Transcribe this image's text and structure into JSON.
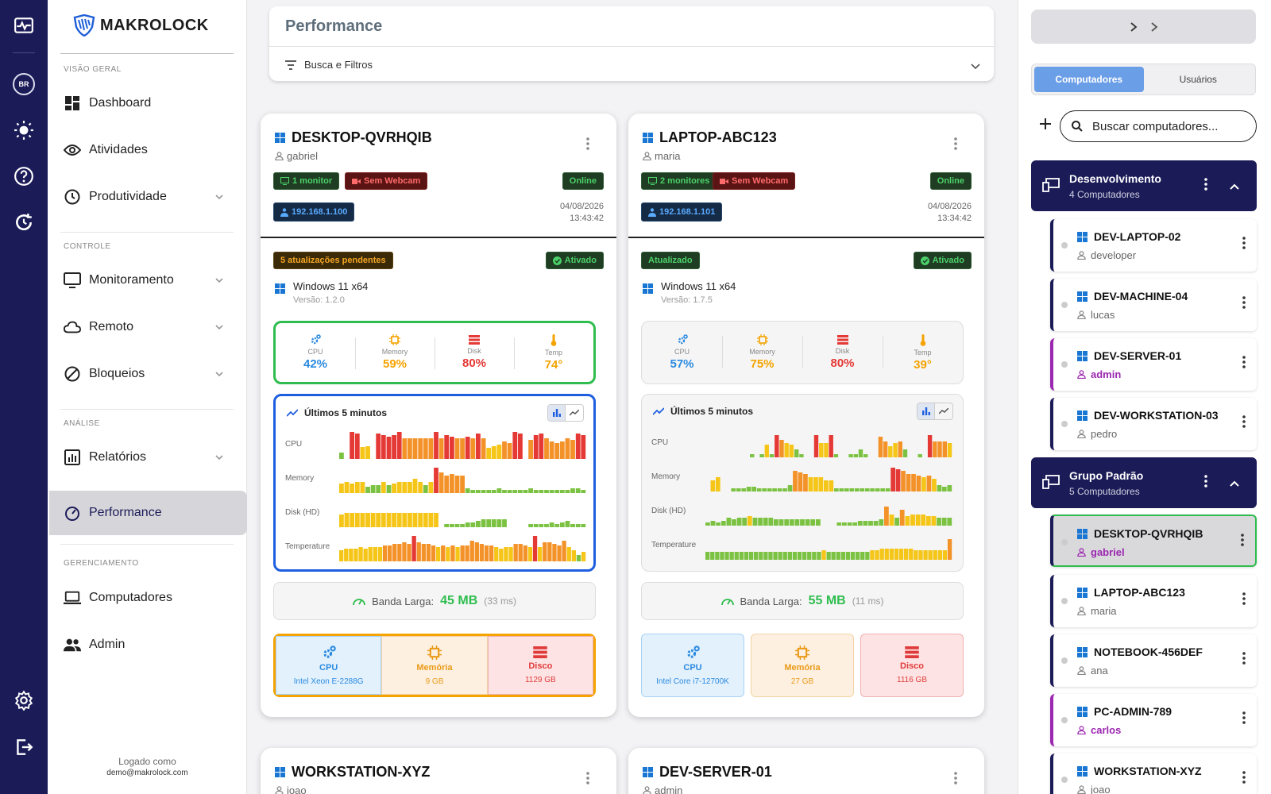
{
  "brand": {
    "name": "MAKROLOCK"
  },
  "rail": {
    "language": "BR"
  },
  "sidebar": {
    "sections": {
      "overview": "VISÃO GERAL",
      "control": "CONTROLE",
      "analysis": "ANÁLISE",
      "management": "GERENCIAMENTO"
    },
    "items": {
      "dashboard": "Dashboard",
      "atividades": "Atividades",
      "produtividade": "Produtividade",
      "monitoramento": "Monitoramento",
      "remoto": "Remoto",
      "bloqueios": "Bloqueios",
      "relatorios": "Relatórios",
      "performance": "Performance",
      "computadores": "Computadores",
      "admin": "Admin"
    },
    "logged_label": "Logado como",
    "logged_email": "demo@makrolock.com"
  },
  "header": {
    "title": "Performance",
    "filters_label": "Busca e Filtros"
  },
  "labels": {
    "cpu": "CPU",
    "memory": "Memory",
    "disk": "Disk",
    "temp": "Temp",
    "history_title": "Últimos 5 minutos",
    "row_cpu": "CPU",
    "row_memory": "Memory",
    "row_disk": "Disk (HD)",
    "row_temp": "Temperature",
    "bandwidth": "Banda Larga:",
    "hw_cpu": "CPU",
    "hw_memory": "Memória",
    "hw_disk": "Disco",
    "activated": "Ativado",
    "online": "Online"
  },
  "cards": [
    {
      "name": "DESKTOP-QVRHQIB",
      "user": "gabriel",
      "monitors": "1 monitor",
      "webcam": "Sem Webcam",
      "ip": "192.168.1.100",
      "date": "04/08/2026",
      "time": "13:43:42",
      "updates": "5 atualizações pendentes",
      "os": "Windows 11 x64",
      "version": "Versão: 1.2.0",
      "cpu": "42%",
      "memory": "59%",
      "disk": "80%",
      "temp": "74°",
      "bandwidth": "45 MB",
      "latency": "(33 ms)",
      "cpu_model": "Intel Xeon E-2288G",
      "mem_size": "9 GB",
      "disk_size": "1129 GB"
    },
    {
      "name": "LAPTOP-ABC123",
      "user": "maria",
      "monitors": "2 monitores",
      "webcam": "Sem Webcam",
      "ip": "192.168.1.101",
      "date": "04/08/2026",
      "time": "13:34:42",
      "updates": "Atualizado",
      "os": "Windows 11 x64",
      "version": "Versão: 1.7.5",
      "cpu": "57%",
      "memory": "75%",
      "disk": "80%",
      "temp": "39°",
      "bandwidth": "55 MB",
      "latency": "(11 ms)",
      "cpu_model": "Intel Core i7-12700K",
      "mem_size": "27 GB",
      "disk_size": "1116 GB"
    },
    {
      "name": "WORKSTATION-XYZ",
      "user": "joao"
    },
    {
      "name": "DEV-SERVER-01",
      "user": "admin"
    }
  ],
  "right": {
    "tabs": {
      "computers": "Computadores",
      "users": "Usuários"
    },
    "search_placeholder": "Buscar computadores...",
    "groups": [
      {
        "name": "Desenvolvimento",
        "count": "4 Computadores"
      },
      {
        "name": "Grupo Padrão",
        "count": "5 Computadores"
      }
    ],
    "computers": [
      {
        "name": "DEV-LAPTOP-02",
        "user": "developer"
      },
      {
        "name": "DEV-MACHINE-04",
        "user": "lucas"
      },
      {
        "name": "DEV-SERVER-01",
        "user": "admin"
      },
      {
        "name": "DEV-WORKSTATION-03",
        "user": "pedro"
      },
      {
        "name": "DESKTOP-QVRHQIB",
        "user": "gabriel"
      },
      {
        "name": "LAPTOP-ABC123",
        "user": "maria"
      },
      {
        "name": "NOTEBOOK-456DEF",
        "user": "ana"
      },
      {
        "name": "PC-ADMIN-789",
        "user": "carlos"
      },
      {
        "name": "WORKSTATION-XYZ",
        "user": "joao"
      }
    ]
  },
  "colors": {
    "rail": "#1b1b58",
    "accent": "#2ebd4e",
    "low": "#7cc242",
    "mid": "#f5c518",
    "high": "#f4922a",
    "crit": "#e53935"
  },
  "history": [
    {
      "cpu": [
        8,
        0,
        34,
        32,
        15,
        16,
        0,
        32,
        30,
        28,
        30,
        34,
        26,
        26,
        26,
        26,
        26,
        26,
        34,
        26,
        30,
        28,
        26,
        26,
        28,
        26,
        32,
        26,
        14,
        16,
        18,
        22,
        20,
        34,
        32,
        0,
        24,
        30,
        32,
        26,
        22,
        20,
        22,
        26,
        24,
        32,
        30
      ],
      "memory": [
        12,
        14,
        12,
        14,
        14,
        8,
        10,
        10,
        14,
        10,
        12,
        14,
        14,
        14,
        18,
        14,
        10,
        14,
        32,
        26,
        22,
        24,
        22,
        22,
        6,
        4,
        4,
        4,
        4,
        4,
        6,
        4,
        4,
        4,
        4,
        4,
        6,
        4,
        4,
        4,
        4,
        4,
        4,
        4,
        6,
        6,
        4
      ],
      "disk": [
        16,
        18,
        18,
        18,
        18,
        18,
        18,
        18,
        18,
        18,
        18,
        18,
        18,
        18,
        18,
        18,
        18,
        18,
        18,
        0,
        4,
        4,
        4,
        4,
        6,
        6,
        8,
        10,
        10,
        10,
        10,
        10,
        0,
        0,
        0,
        0,
        4,
        4,
        4,
        4,
        6,
        4,
        6,
        8,
        4,
        4,
        4
      ],
      "temp": [
        14,
        16,
        16,
        16,
        18,
        16,
        18,
        18,
        18,
        20,
        20,
        22,
        22,
        24,
        22,
        32,
        24,
        22,
        22,
        20,
        18,
        20,
        18,
        20,
        18,
        20,
        20,
        26,
        24,
        22,
        20,
        20,
        18,
        16,
        18,
        18,
        22,
        22,
        20,
        18,
        32,
        18,
        24,
        24,
        22,
        20,
        26,
        18,
        14,
        8,
        12
      ]
    },
    {
      "cpu": [
        0,
        0,
        0,
        0,
        0,
        0,
        0,
        0,
        0,
        4,
        0,
        4,
        16,
        4,
        28,
        22,
        18,
        16,
        10,
        4,
        0,
        0,
        28,
        18,
        18,
        28,
        4,
        0,
        0,
        4,
        4,
        10,
        4,
        0,
        0,
        26,
        20,
        14,
        18,
        20,
        10,
        0,
        0,
        4,
        0,
        28,
        20,
        20,
        20,
        18
      ],
      "memory": [
        0,
        14,
        18,
        0,
        0,
        4,
        4,
        4,
        6,
        6,
        4,
        4,
        4,
        4,
        4,
        4,
        8,
        26,
        24,
        22,
        18,
        18,
        18,
        14,
        14,
        4,
        4,
        4,
        4,
        4,
        4,
        4,
        4,
        4,
        4,
        4,
        30,
        28,
        26,
        22,
        22,
        20,
        18,
        20,
        16,
        8,
        6,
        8
      ],
      "disk": [
        4,
        6,
        4,
        6,
        10,
        8,
        10,
        10,
        12,
        10,
        10,
        10,
        10,
        8,
        8,
        8,
        8,
        8,
        8,
        8,
        8,
        8,
        0,
        0,
        0,
        4,
        4,
        4,
        4,
        6,
        6,
        6,
        6,
        8,
        24,
        14,
        10,
        20,
        12,
        14,
        14,
        14,
        12,
        12,
        10,
        10,
        10
      ],
      "temp": [
        10,
        10,
        10,
        10,
        10,
        10,
        10,
        10,
        10,
        10,
        10,
        10,
        10,
        10,
        10,
        10,
        10,
        10,
        10,
        10,
        10,
        10,
        10,
        10,
        12,
        10,
        10,
        10,
        10,
        10,
        10,
        10,
        10,
        10,
        12,
        12,
        14,
        14,
        14,
        14,
        14,
        14,
        14,
        12,
        12,
        12,
        12,
        12,
        12,
        12,
        26
      ]
    }
  ]
}
